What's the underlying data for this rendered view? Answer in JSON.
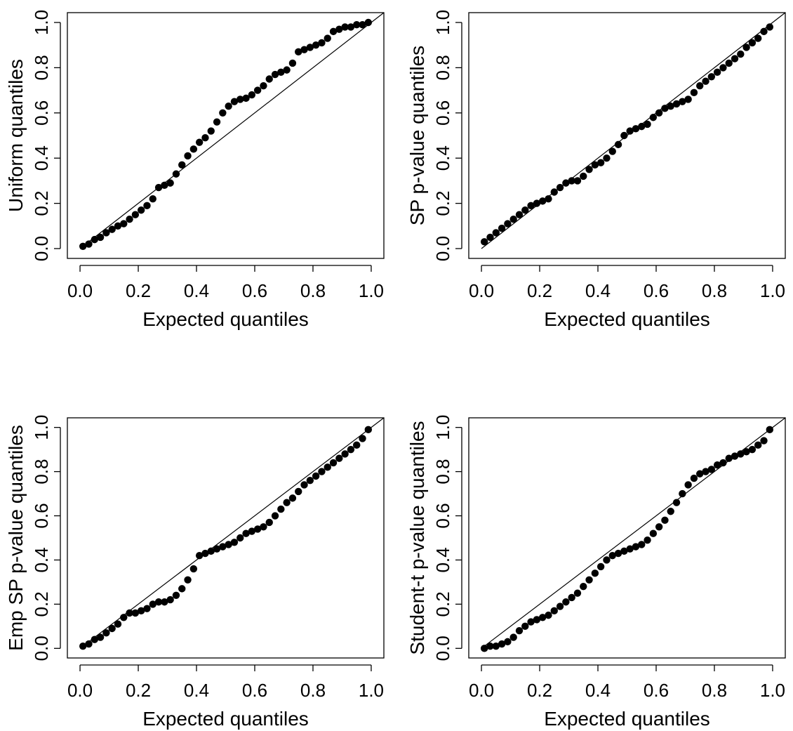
{
  "chart_data": [
    {
      "type": "scatter",
      "xlabel": "Expected quantiles",
      "ylabel": "Uniform quantiles",
      "xlim": [
        0,
        1
      ],
      "ylim": [
        0,
        1
      ],
      "xticks": [
        "0.0",
        "0.2",
        "0.4",
        "0.6",
        "0.8",
        "1.0"
      ],
      "yticks": [
        "0.0",
        "0.2",
        "0.4",
        "0.6",
        "0.8",
        "1.0"
      ],
      "reference_line": "y = x",
      "x": [
        0.01,
        0.03,
        0.05,
        0.07,
        0.09,
        0.11,
        0.13,
        0.15,
        0.17,
        0.19,
        0.21,
        0.23,
        0.25,
        0.27,
        0.29,
        0.31,
        0.33,
        0.35,
        0.37,
        0.39,
        0.41,
        0.43,
        0.45,
        0.47,
        0.49,
        0.51,
        0.53,
        0.55,
        0.57,
        0.59,
        0.61,
        0.63,
        0.65,
        0.67,
        0.69,
        0.71,
        0.73,
        0.75,
        0.77,
        0.79,
        0.81,
        0.83,
        0.85,
        0.87,
        0.89,
        0.91,
        0.93,
        0.95,
        0.97,
        0.99
      ],
      "y": [
        0.01,
        0.02,
        0.04,
        0.05,
        0.07,
        0.085,
        0.1,
        0.11,
        0.13,
        0.15,
        0.17,
        0.19,
        0.22,
        0.27,
        0.28,
        0.29,
        0.33,
        0.37,
        0.41,
        0.44,
        0.47,
        0.49,
        0.52,
        0.56,
        0.6,
        0.63,
        0.65,
        0.66,
        0.665,
        0.68,
        0.7,
        0.72,
        0.75,
        0.77,
        0.78,
        0.79,
        0.82,
        0.87,
        0.88,
        0.89,
        0.9,
        0.91,
        0.93,
        0.96,
        0.97,
        0.98,
        0.98,
        0.99,
        0.99,
        1.0
      ]
    },
    {
      "type": "scatter",
      "xlabel": "Expected quantiles",
      "ylabel": "SP p-value quantiles",
      "xlim": [
        0,
        1
      ],
      "ylim": [
        0,
        1
      ],
      "xticks": [
        "0.0",
        "0.2",
        "0.4",
        "0.6",
        "0.8",
        "1.0"
      ],
      "yticks": [
        "0.0",
        "0.2",
        "0.4",
        "0.6",
        "0.8",
        "1.0"
      ],
      "reference_line": "y = x",
      "x": [
        0.01,
        0.03,
        0.05,
        0.07,
        0.09,
        0.11,
        0.13,
        0.15,
        0.17,
        0.19,
        0.21,
        0.23,
        0.25,
        0.27,
        0.29,
        0.31,
        0.33,
        0.35,
        0.37,
        0.39,
        0.41,
        0.43,
        0.45,
        0.47,
        0.49,
        0.51,
        0.53,
        0.55,
        0.57,
        0.59,
        0.61,
        0.63,
        0.65,
        0.67,
        0.69,
        0.71,
        0.73,
        0.75,
        0.77,
        0.79,
        0.81,
        0.83,
        0.85,
        0.87,
        0.89,
        0.91,
        0.93,
        0.95,
        0.97,
        0.99
      ],
      "y": [
        0.03,
        0.05,
        0.07,
        0.09,
        0.11,
        0.13,
        0.15,
        0.17,
        0.19,
        0.2,
        0.21,
        0.22,
        0.25,
        0.27,
        0.29,
        0.3,
        0.3,
        0.32,
        0.35,
        0.37,
        0.38,
        0.4,
        0.43,
        0.46,
        0.5,
        0.52,
        0.53,
        0.54,
        0.55,
        0.58,
        0.6,
        0.62,
        0.63,
        0.64,
        0.65,
        0.66,
        0.69,
        0.72,
        0.74,
        0.76,
        0.78,
        0.8,
        0.82,
        0.84,
        0.86,
        0.89,
        0.91,
        0.93,
        0.96,
        0.98
      ]
    },
    {
      "type": "scatter",
      "xlabel": "Expected quantiles",
      "ylabel": "Emp SP p-value quantiles",
      "xlim": [
        0,
        1
      ],
      "ylim": [
        0,
        1
      ],
      "xticks": [
        "0.0",
        "0.2",
        "0.4",
        "0.6",
        "0.8",
        "1.0"
      ],
      "yticks": [
        "0.0",
        "0.2",
        "0.4",
        "0.6",
        "0.8",
        "1.0"
      ],
      "reference_line": "y = x",
      "x": [
        0.01,
        0.03,
        0.05,
        0.07,
        0.09,
        0.11,
        0.13,
        0.15,
        0.17,
        0.19,
        0.21,
        0.23,
        0.25,
        0.27,
        0.29,
        0.31,
        0.33,
        0.35,
        0.37,
        0.39,
        0.41,
        0.43,
        0.45,
        0.47,
        0.49,
        0.51,
        0.53,
        0.55,
        0.57,
        0.59,
        0.61,
        0.63,
        0.65,
        0.67,
        0.69,
        0.71,
        0.73,
        0.75,
        0.77,
        0.79,
        0.81,
        0.83,
        0.85,
        0.87,
        0.89,
        0.91,
        0.93,
        0.95,
        0.97,
        0.99
      ],
      "y": [
        0.01,
        0.02,
        0.04,
        0.05,
        0.07,
        0.09,
        0.11,
        0.14,
        0.16,
        0.16,
        0.17,
        0.18,
        0.2,
        0.21,
        0.21,
        0.22,
        0.24,
        0.27,
        0.31,
        0.36,
        0.42,
        0.43,
        0.44,
        0.45,
        0.46,
        0.47,
        0.48,
        0.5,
        0.52,
        0.53,
        0.54,
        0.55,
        0.57,
        0.6,
        0.63,
        0.66,
        0.68,
        0.71,
        0.74,
        0.76,
        0.78,
        0.8,
        0.82,
        0.84,
        0.86,
        0.88,
        0.9,
        0.92,
        0.95,
        0.99
      ]
    },
    {
      "type": "scatter",
      "xlabel": "Expected quantiles",
      "ylabel": "Student-t p-value quantiles",
      "xlim": [
        0,
        1
      ],
      "ylim": [
        0,
        1
      ],
      "xticks": [
        "0.0",
        "0.2",
        "0.4",
        "0.6",
        "0.8",
        "1.0"
      ],
      "yticks": [
        "0.0",
        "0.2",
        "0.4",
        "0.6",
        "0.8",
        "1.0"
      ],
      "reference_line": "y = x",
      "x": [
        0.01,
        0.03,
        0.05,
        0.07,
        0.09,
        0.11,
        0.13,
        0.15,
        0.17,
        0.19,
        0.21,
        0.23,
        0.25,
        0.27,
        0.29,
        0.31,
        0.33,
        0.35,
        0.37,
        0.39,
        0.41,
        0.43,
        0.45,
        0.47,
        0.49,
        0.51,
        0.53,
        0.55,
        0.57,
        0.59,
        0.61,
        0.63,
        0.65,
        0.67,
        0.69,
        0.71,
        0.73,
        0.75,
        0.77,
        0.79,
        0.81,
        0.83,
        0.85,
        0.87,
        0.89,
        0.91,
        0.93,
        0.95,
        0.97,
        0.99
      ],
      "y": [
        0.0,
        0.01,
        0.01,
        0.02,
        0.03,
        0.05,
        0.08,
        0.1,
        0.12,
        0.13,
        0.14,
        0.15,
        0.17,
        0.19,
        0.21,
        0.23,
        0.25,
        0.28,
        0.31,
        0.34,
        0.37,
        0.4,
        0.42,
        0.43,
        0.44,
        0.45,
        0.46,
        0.47,
        0.49,
        0.52,
        0.55,
        0.58,
        0.62,
        0.66,
        0.7,
        0.74,
        0.77,
        0.79,
        0.8,
        0.81,
        0.83,
        0.84,
        0.86,
        0.87,
        0.88,
        0.89,
        0.9,
        0.92,
        0.94,
        0.99
      ]
    }
  ]
}
